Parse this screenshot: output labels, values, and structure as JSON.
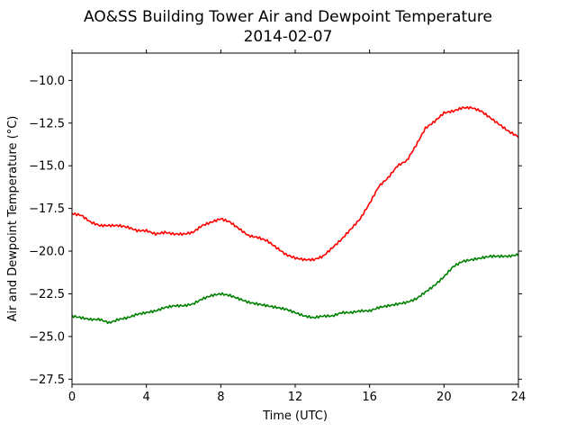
{
  "chart_data": {
    "type": "line",
    "title": "AO&SS Building Tower Air and Dewpoint Temperature",
    "subtitle": "2014-02-07",
    "xlabel": "Time (UTC)",
    "ylabel": "Air and Dewpoint Temperature (°C)",
    "xlim": [
      0,
      24
    ],
    "ylim": [
      -27.8,
      -8.4
    ],
    "xticks": [
      0,
      4,
      8,
      12,
      16,
      20,
      24
    ],
    "yticks": [
      -27.5,
      -25.0,
      -22.5,
      -20.0,
      -17.5,
      -15.0,
      -12.5,
      -10.0
    ],
    "ytick_labels": [
      "−27.5",
      "−25.0",
      "−22.5",
      "−20.0",
      "−17.5",
      "−15.0",
      "−12.5",
      "−10.0"
    ],
    "grid": false,
    "series": [
      {
        "color": "#ff0000",
        "x": [
          0.0,
          0.5,
          1.0,
          1.5,
          2.0,
          2.5,
          3.0,
          3.5,
          4.0,
          4.5,
          5.0,
          5.5,
          6.0,
          6.5,
          7.0,
          7.5,
          8.0,
          8.5,
          9.0,
          9.5,
          10.0,
          10.5,
          11.0,
          11.5,
          12.0,
          12.5,
          13.0,
          13.5,
          14.0,
          14.5,
          15.0,
          15.5,
          16.0,
          16.5,
          17.0,
          17.5,
          18.0,
          18.5,
          19.0,
          19.5,
          20.0,
          20.5,
          21.0,
          21.5,
          22.0,
          22.5,
          23.0,
          23.5,
          24.0
        ],
        "values": [
          -17.8,
          -17.9,
          -18.3,
          -18.5,
          -18.5,
          -18.5,
          -18.6,
          -18.8,
          -18.8,
          -19.0,
          -18.9,
          -19.0,
          -19.0,
          -18.9,
          -18.5,
          -18.3,
          -18.1,
          -18.3,
          -18.7,
          -19.1,
          -19.2,
          -19.4,
          -19.8,
          -20.2,
          -20.4,
          -20.5,
          -20.5,
          -20.3,
          -19.8,
          -19.3,
          -18.7,
          -18.1,
          -17.2,
          -16.2,
          -15.7,
          -15.0,
          -14.7,
          -13.8,
          -12.8,
          -12.4,
          -11.9,
          -11.8,
          -11.6,
          -11.6,
          -11.8,
          -12.2,
          -12.6,
          -13.0,
          -13.3
        ]
      },
      {
        "color": "#008000",
        "x": [
          0.0,
          0.5,
          1.0,
          1.5,
          2.0,
          2.5,
          3.0,
          3.5,
          4.0,
          4.5,
          5.0,
          5.5,
          6.0,
          6.5,
          7.0,
          7.5,
          8.0,
          8.5,
          9.0,
          9.5,
          10.0,
          10.5,
          11.0,
          11.5,
          12.0,
          12.5,
          13.0,
          13.5,
          14.0,
          14.5,
          15.0,
          15.5,
          16.0,
          16.5,
          17.0,
          17.5,
          18.0,
          18.5,
          19.0,
          19.5,
          20.0,
          20.5,
          21.0,
          21.5,
          22.0,
          22.5,
          23.0,
          23.5,
          24.0
        ],
        "values": [
          -23.8,
          -23.9,
          -24.0,
          -24.0,
          -24.2,
          -24.0,
          -23.9,
          -23.7,
          -23.6,
          -23.5,
          -23.3,
          -23.2,
          -23.2,
          -23.1,
          -22.8,
          -22.6,
          -22.5,
          -22.6,
          -22.8,
          -23.0,
          -23.1,
          -23.2,
          -23.3,
          -23.4,
          -23.6,
          -23.8,
          -23.9,
          -23.8,
          -23.8,
          -23.6,
          -23.6,
          -23.5,
          -23.5,
          -23.3,
          -23.2,
          -23.1,
          -23.0,
          -22.8,
          -22.4,
          -22.0,
          -21.5,
          -20.9,
          -20.6,
          -20.5,
          -20.4,
          -20.3,
          -20.3,
          -20.3,
          -20.2
        ]
      }
    ]
  }
}
